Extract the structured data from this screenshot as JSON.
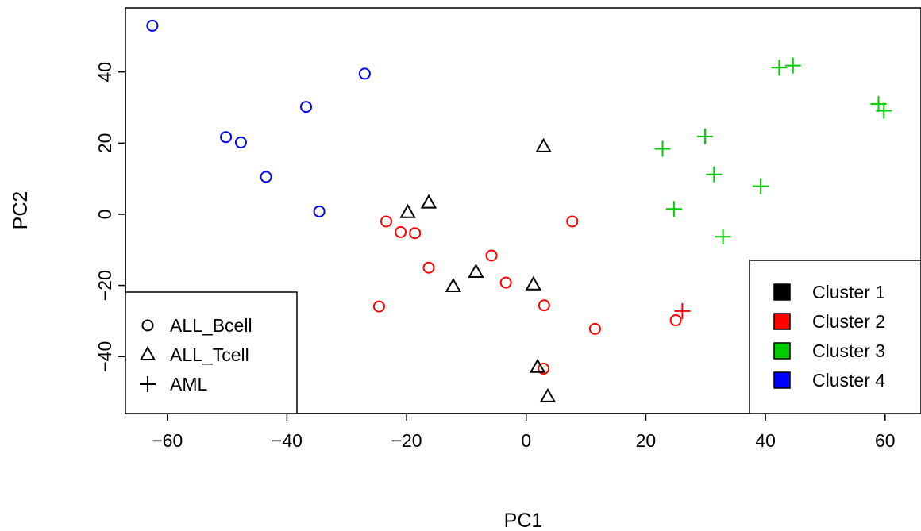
{
  "chart_data": {
    "type": "scatter",
    "title": "",
    "xlabel": "PC1",
    "ylabel": "PC2",
    "xlim": [
      -67,
      66
    ],
    "ylim": [
      -56,
      58
    ],
    "xticks": [
      -60,
      -40,
      -20,
      0,
      20,
      40,
      60
    ],
    "yticks": [
      -40,
      -20,
      0,
      20,
      40
    ],
    "xtick_labels": [
      "−60",
      "−40",
      "−20",
      "0",
      "20",
      "40",
      "60"
    ],
    "ytick_labels": [
      "−40",
      "−20",
      "0",
      "20",
      "40"
    ],
    "grid": false,
    "colors": {
      "Cluster 1": "#000000",
      "Cluster 2": "#ff0000",
      "Cluster 3": "#00cd00",
      "Cluster 4": "#0000ff"
    },
    "shape_legend": {
      "placement": "bottom-left",
      "entries": [
        {
          "label": "ALL_Bcell",
          "shape": "circle"
        },
        {
          "label": "ALL_Tcell",
          "shape": "triangle"
        },
        {
          "label": "AML",
          "shape": "plus"
        }
      ]
    },
    "color_legend": {
      "placement": "bottom-right",
      "entries": [
        {
          "label": "Cluster 1",
          "color": "#000000"
        },
        {
          "label": "Cluster 2",
          "color": "#ff0000"
        },
        {
          "label": "Cluster 3",
          "color": "#00cd00"
        },
        {
          "label": "Cluster 4",
          "color": "#0000ff"
        }
      ]
    },
    "points": [
      {
        "x": -62.5,
        "y": 53.0,
        "shape": "circle",
        "cluster": "Cluster 4"
      },
      {
        "x": -27.0,
        "y": 39.5,
        "shape": "circle",
        "cluster": "Cluster 4"
      },
      {
        "x": -36.8,
        "y": 30.2,
        "shape": "circle",
        "cluster": "Cluster 4"
      },
      {
        "x": -50.2,
        "y": 21.7,
        "shape": "circle",
        "cluster": "Cluster 4"
      },
      {
        "x": -47.7,
        "y": 20.2,
        "shape": "circle",
        "cluster": "Cluster 4"
      },
      {
        "x": -43.5,
        "y": 10.5,
        "shape": "circle",
        "cluster": "Cluster 4"
      },
      {
        "x": -34.6,
        "y": 0.8,
        "shape": "circle",
        "cluster": "Cluster 4"
      },
      {
        "x": -23.4,
        "y": -2.0,
        "shape": "circle",
        "cluster": "Cluster 2"
      },
      {
        "x": -21.0,
        "y": -5.0,
        "shape": "circle",
        "cluster": "Cluster 2"
      },
      {
        "x": -18.6,
        "y": -5.3,
        "shape": "circle",
        "cluster": "Cluster 2"
      },
      {
        "x": 7.7,
        "y": -2.0,
        "shape": "circle",
        "cluster": "Cluster 2"
      },
      {
        "x": -5.8,
        "y": -11.6,
        "shape": "circle",
        "cluster": "Cluster 2"
      },
      {
        "x": -16.3,
        "y": -15.0,
        "shape": "circle",
        "cluster": "Cluster 2"
      },
      {
        "x": -3.4,
        "y": -19.2,
        "shape": "circle",
        "cluster": "Cluster 2"
      },
      {
        "x": -24.6,
        "y": -25.9,
        "shape": "circle",
        "cluster": "Cluster 2"
      },
      {
        "x": 3.0,
        "y": -25.6,
        "shape": "circle",
        "cluster": "Cluster 2"
      },
      {
        "x": 11.5,
        "y": -32.2,
        "shape": "circle",
        "cluster": "Cluster 2"
      },
      {
        "x": 25.0,
        "y": -29.8,
        "shape": "circle",
        "cluster": "Cluster 2"
      },
      {
        "x": 2.9,
        "y": -43.4,
        "shape": "circle",
        "cluster": "Cluster 2"
      },
      {
        "x": 2.9,
        "y": 19.0,
        "shape": "triangle",
        "cluster": "Cluster 1"
      },
      {
        "x": -16.3,
        "y": 3.2,
        "shape": "triangle",
        "cluster": "Cluster 1"
      },
      {
        "x": -19.8,
        "y": 0.5,
        "shape": "triangle",
        "cluster": "Cluster 1"
      },
      {
        "x": -8.4,
        "y": -16.3,
        "shape": "triangle",
        "cluster": "Cluster 1"
      },
      {
        "x": -12.2,
        "y": -20.3,
        "shape": "triangle",
        "cluster": "Cluster 1"
      },
      {
        "x": 1.2,
        "y": -19.8,
        "shape": "triangle",
        "cluster": "Cluster 1"
      },
      {
        "x": 1.9,
        "y": -43.0,
        "shape": "triangle",
        "cluster": "Cluster 1"
      },
      {
        "x": 3.6,
        "y": -51.3,
        "shape": "triangle",
        "cluster": "Cluster 1"
      },
      {
        "x": 42.3,
        "y": 41.2,
        "shape": "plus",
        "cluster": "Cluster 3"
      },
      {
        "x": 44.6,
        "y": 41.8,
        "shape": "plus",
        "cluster": "Cluster 3"
      },
      {
        "x": 58.9,
        "y": 31.0,
        "shape": "plus",
        "cluster": "Cluster 3"
      },
      {
        "x": 59.8,
        "y": 29.1,
        "shape": "plus",
        "cluster": "Cluster 3"
      },
      {
        "x": 29.9,
        "y": 21.9,
        "shape": "plus",
        "cluster": "Cluster 3"
      },
      {
        "x": 22.8,
        "y": 18.4,
        "shape": "plus",
        "cluster": "Cluster 3"
      },
      {
        "x": 31.4,
        "y": 11.2,
        "shape": "plus",
        "cluster": "Cluster 3"
      },
      {
        "x": 39.2,
        "y": 7.9,
        "shape": "plus",
        "cluster": "Cluster 3"
      },
      {
        "x": 24.7,
        "y": 1.5,
        "shape": "plus",
        "cluster": "Cluster 3"
      },
      {
        "x": 32.9,
        "y": -6.3,
        "shape": "plus",
        "cluster": "Cluster 3"
      },
      {
        "x": 26.1,
        "y": -27.2,
        "shape": "plus",
        "cluster": "Cluster 2"
      }
    ]
  }
}
